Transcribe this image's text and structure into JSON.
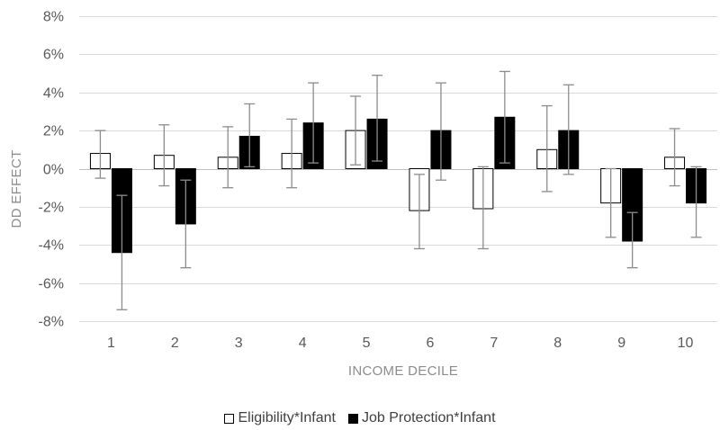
{
  "chart_data": {
    "type": "bar",
    "title": "",
    "xlabel": "INCOME DECILE",
    "ylabel": "DD EFFECT",
    "ylim": [
      -0.08,
      0.08
    ],
    "yticks": [
      "-8%",
      "-6%",
      "-4%",
      "-2%",
      "0%",
      "2%",
      "4%",
      "6%",
      "8%"
    ],
    "categories": [
      "1",
      "2",
      "3",
      "4",
      "5",
      "6",
      "7",
      "8",
      "9",
      "10"
    ],
    "grid": true,
    "legend_position": "bottom",
    "series": [
      {
        "name": "Eligibility*Infant",
        "fill": "#ffffff",
        "stroke": "#000000",
        "values": [
          0.008,
          0.007,
          0.006,
          0.008,
          0.02,
          -0.022,
          -0.021,
          0.01,
          -0.018,
          0.006
        ],
        "error_low": [
          -0.005,
          -0.009,
          -0.01,
          -0.01,
          0.002,
          -0.042,
          -0.042,
          -0.012,
          -0.036,
          -0.009
        ],
        "error_high": [
          0.02,
          0.023,
          0.022,
          0.026,
          0.038,
          -0.003,
          0.001,
          0.033,
          0.0,
          0.021
        ]
      },
      {
        "name": "Job Protection*Infant",
        "fill": "#000000",
        "stroke": "#000000",
        "values": [
          -0.044,
          -0.029,
          0.017,
          0.024,
          0.026,
          0.02,
          0.027,
          0.02,
          -0.038,
          -0.018
        ],
        "error_low": [
          -0.074,
          -0.052,
          0.001,
          0.003,
          0.004,
          -0.006,
          0.003,
          -0.003,
          -0.052,
          -0.036
        ],
        "error_high": [
          -0.014,
          -0.006,
          0.034,
          0.045,
          0.049,
          0.045,
          0.051,
          0.044,
          -0.023,
          0.001
        ]
      }
    ]
  }
}
